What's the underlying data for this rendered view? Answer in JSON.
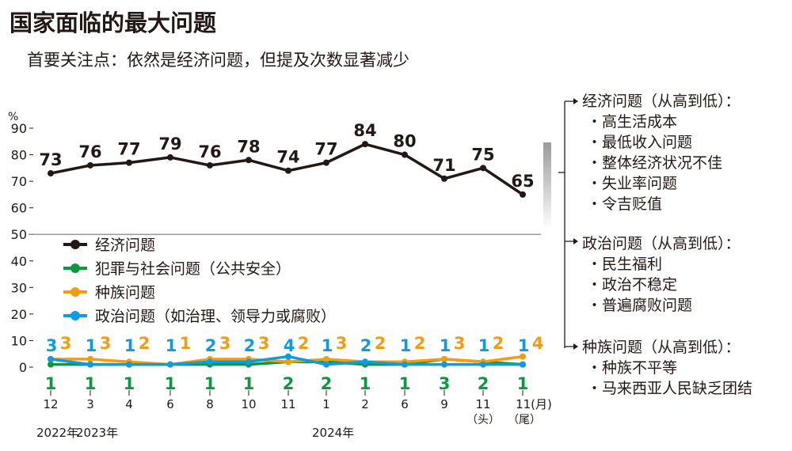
{
  "title": "国家面临的最大问题",
  "subtitle": "首要关注点：依然是经济问题，但提及次数显著减少",
  "chart_data": {
    "type": "line",
    "ylabel": "%",
    "ylim": [
      0,
      90
    ],
    "yticks": [
      0,
      10,
      20,
      30,
      40,
      50,
      60,
      70,
      80,
      90
    ],
    "axis_break": 50,
    "categories": [
      "12",
      "3",
      "4",
      "6",
      "8",
      "10",
      "11",
      "1",
      "2",
      "6",
      "9",
      "11",
      "11(月)"
    ],
    "sub_labels": {
      "11": "（头）",
      "12": "（尾）"
    },
    "years": [
      {
        "label": "2022年",
        "at": 0
      },
      {
        "label": "2023年",
        "at": 1
      },
      {
        "label": "2024年",
        "at": 7
      }
    ],
    "series": [
      {
        "name": "经济问题",
        "color": "#231815",
        "values": [
          73,
          76,
          77,
          79,
          76,
          78,
          74,
          77,
          84,
          80,
          71,
          75,
          65
        ],
        "label_pos": "above"
      },
      {
        "name": "犯罪与社会问题（公共安全）",
        "color": "#0a9a3d",
        "values": [
          1,
          1,
          1,
          1,
          1,
          1,
          2,
          2,
          1,
          1,
          3,
          2,
          1
        ],
        "label_pos": "below"
      },
      {
        "name": "种族问题",
        "color": "#f39c12",
        "values": [
          3,
          3,
          2,
          1,
          3,
          3,
          2,
          3,
          2,
          2,
          3,
          2,
          4
        ],
        "label_pos": "above-right"
      },
      {
        "name": "政治问题（如治理、领导力或腐败）",
        "color": "#0f9be0",
        "values": [
          3,
          1,
          1,
          1,
          2,
          2,
          4,
          1,
          2,
          1,
          1,
          1,
          1
        ],
        "label_pos": "above-left"
      }
    ]
  },
  "side_panel": [
    {
      "heading": "经济问题（从高到低）：",
      "items": [
        "・高生活成本",
        "・最低收入问题",
        "・整体经济状况不佳",
        "・失业率问题",
        "・令吉贬值"
      ]
    },
    {
      "heading": "政治问题（从高到低）：",
      "items": [
        "・民生福利",
        "・政治不稳定",
        "・普遍腐败问题"
      ]
    },
    {
      "heading": "种族问题（从高到低）：",
      "items": [
        "・种族不平等",
        "・马来西亚人民缺乏团结"
      ]
    }
  ]
}
